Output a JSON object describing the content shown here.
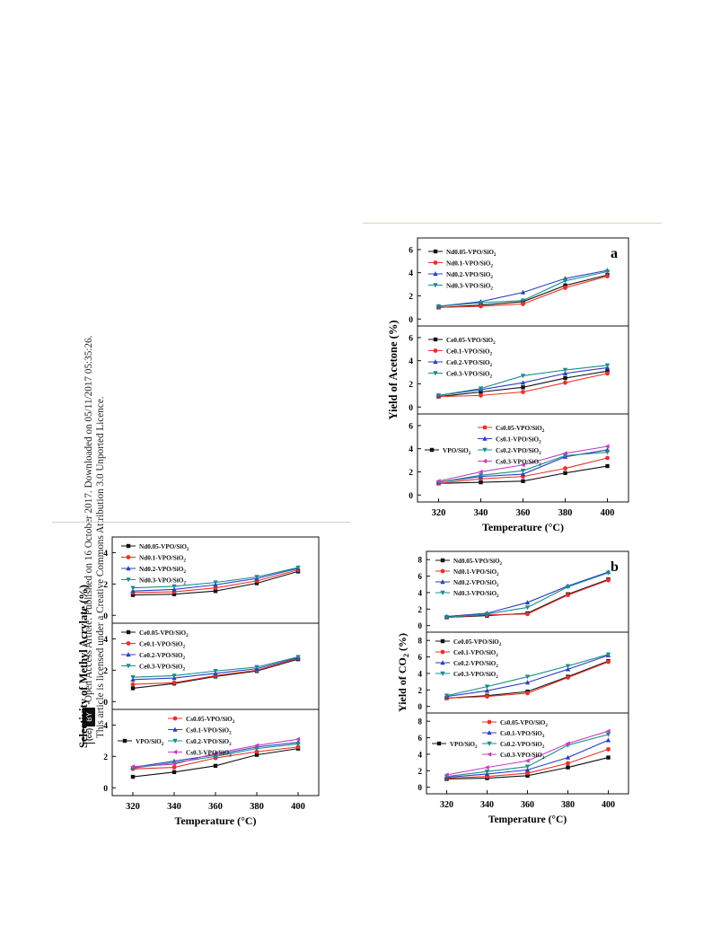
{
  "sidebar": {
    "line1": "Open Access Article. Published on 16 October 2017. Downloaded on 05/11/2017 05:35:26.",
    "line2": "This article is licensed under a Creative Commons Attribution 3.0 Unported Licence.",
    "badge_cc": "(cc)",
    "badge_by": "BY"
  },
  "colors": {
    "black": "#111111",
    "red": "#e8322b",
    "blue": "#2b3fbf",
    "teal": "#1a8c8c",
    "magenta": "#c040c0"
  },
  "chart_data": [
    {
      "id": "acetone",
      "type": "line",
      "panel_letter": "a",
      "ylabel": "Yield of  Acetone (%)",
      "xlabel": "Temperature (°C)",
      "x": [
        320,
        340,
        360,
        380,
        400
      ],
      "xlim": [
        310,
        410
      ],
      "subplots": [
        {
          "ylim": [
            -0.6,
            7
          ],
          "yticks": [
            "0",
            "2",
            "4",
            "6"
          ],
          "series": [
            {
              "name": "Nd0.05-VPO/SiO2",
              "color": "#111111",
              "marker": "square",
              "values": [
                1.0,
                1.2,
                1.5,
                2.9,
                3.8
              ]
            },
            {
              "name": "Nd0.1-VPO/SiO2",
              "color": "#e8322b",
              "marker": "circle",
              "values": [
                1.0,
                1.1,
                1.3,
                2.7,
                3.7
              ]
            },
            {
              "name": "Nd0.2-VPO/SiO2",
              "color": "#2b3fbf",
              "marker": "triangle-up",
              "values": [
                1.1,
                1.5,
                2.3,
                3.5,
                4.2
              ]
            },
            {
              "name": "Nd0.3-VPO/SiO2",
              "color": "#1a8c8c",
              "marker": "triangle-down",
              "values": [
                1.1,
                1.4,
                1.6,
                3.3,
                4.1
              ]
            }
          ]
        },
        {
          "ylim": [
            -0.6,
            7
          ],
          "yticks": [
            "0",
            "2",
            "4",
            "6"
          ],
          "series": [
            {
              "name": "Ce0.05-VPO/SiO2",
              "color": "#111111",
              "marker": "square",
              "values": [
                0.9,
                1.3,
                1.7,
                2.5,
                3.1
              ]
            },
            {
              "name": "Ce0.1-VPO/SiO2",
              "color": "#e8322b",
              "marker": "circle",
              "values": [
                0.9,
                1.0,
                1.3,
                2.1,
                2.9
              ]
            },
            {
              "name": "Ce0.2-VPO/SiO2",
              "color": "#2b3fbf",
              "marker": "triangle-up",
              "values": [
                1.0,
                1.5,
                2.1,
                2.9,
                3.4
              ]
            },
            {
              "name": "Ce0.3-VPO/SiO2",
              "color": "#1a8c8c",
              "marker": "triangle-down",
              "values": [
                1.0,
                1.6,
                2.7,
                3.2,
                3.6
              ]
            }
          ]
        },
        {
          "ylim": [
            -0.6,
            7
          ],
          "yticks": [
            "0",
            "2",
            "4",
            "6"
          ],
          "series": [
            {
              "name": "VPO/SiO2",
              "color": "#111111",
              "marker": "square",
              "values": [
                1.0,
                1.1,
                1.2,
                1.9,
                2.5
              ]
            },
            {
              "name": "Cs0.05-VPO/SiO2",
              "color": "#e8322b",
              "marker": "circle",
              "values": [
                1.0,
                1.4,
                1.6,
                2.3,
                3.2
              ]
            },
            {
              "name": "Cs0.1-VPO/SiO2",
              "color": "#2b3fbf",
              "marker": "triangle-up",
              "values": [
                1.1,
                1.6,
                1.8,
                3.3,
                3.9
              ]
            },
            {
              "name": "Cs0.2-VPO/SiO2",
              "color": "#1a8c8c",
              "marker": "triangle-down",
              "values": [
                1.1,
                1.7,
                2.1,
                3.4,
                3.7
              ]
            },
            {
              "name": "Cs0.3-VPO/SiO2",
              "color": "#c040c0",
              "marker": "triangle-left",
              "values": [
                1.2,
                2.0,
                2.6,
                3.6,
                4.2
              ]
            }
          ]
        }
      ]
    },
    {
      "id": "methyl-acrylate",
      "type": "line",
      "panel_letter": "",
      "ylabel": "Selectivity of Methyl Acrylate (%)",
      "xlabel": "Temperature (°C)",
      "x": [
        320,
        340,
        360,
        380,
        400
      ],
      "xlim": [
        310,
        410
      ],
      "subplots": [
        {
          "ylim": [
            -0.5,
            5
          ],
          "yticks": [
            "0",
            "2",
            "4"
          ],
          "series": [
            {
              "name": "Nd0.05-VPO/SiO2",
              "color": "#111111",
              "marker": "square",
              "values": [
                1.3,
                1.35,
                1.55,
                2.05,
                2.8
              ]
            },
            {
              "name": "Nd0.1-VPO/SiO2",
              "color": "#e8322b",
              "marker": "circle",
              "values": [
                1.45,
                1.5,
                1.75,
                2.2,
                2.9
              ]
            },
            {
              "name": "Nd0.2-VPO/SiO2",
              "color": "#2b3fbf",
              "marker": "triangle-up",
              "values": [
                1.55,
                1.65,
                1.95,
                2.35,
                3.0
              ]
            },
            {
              "name": "Nd0.3-VPO/SiO2",
              "color": "#1a8c8c",
              "marker": "triangle-down",
              "values": [
                1.75,
                1.85,
                2.1,
                2.45,
                3.05
              ]
            }
          ]
        },
        {
          "ylim": [
            -0.5,
            5
          ],
          "yticks": [
            "0",
            "2",
            "4"
          ],
          "series": [
            {
              "name": "Ce0.05-VPO/SiO2",
              "color": "#111111",
              "marker": "square",
              "values": [
                0.85,
                1.15,
                1.6,
                1.95,
                2.7
              ]
            },
            {
              "name": "Ce0.1-VPO/SiO2",
              "color": "#e8322b",
              "marker": "circle",
              "values": [
                1.1,
                1.2,
                1.65,
                2.0,
                2.75
              ]
            },
            {
              "name": "Ce0.2-VPO/SiO2",
              "color": "#2b3fbf",
              "marker": "triangle-up",
              "values": [
                1.4,
                1.5,
                1.8,
                2.1,
                2.8
              ]
            },
            {
              "name": "Ce0.3-VPO/SiO2",
              "color": "#1a8c8c",
              "marker": "triangle-down",
              "values": [
                1.55,
                1.65,
                1.95,
                2.2,
                2.85
              ]
            }
          ]
        },
        {
          "ylim": [
            -0.5,
            5
          ],
          "yticks": [
            "0",
            "2",
            "4"
          ],
          "series": [
            {
              "name": "VPO/SiO2",
              "color": "#111111",
              "marker": "square",
              "values": [
                0.7,
                1.0,
                1.4,
                2.1,
                2.5
              ]
            },
            {
              "name": "Cs0.05-VPO/SiO2",
              "color": "#e8322b",
              "marker": "circle",
              "values": [
                1.2,
                1.3,
                1.9,
                2.3,
                2.6
              ]
            },
            {
              "name": "Cs0.1-VPO/SiO2",
              "color": "#2b3fbf",
              "marker": "triangle-up",
              "values": [
                1.3,
                1.7,
                2.1,
                2.6,
                2.9
              ]
            },
            {
              "name": "Cs0.2-VPO/SiO2",
              "color": "#1a8c8c",
              "marker": "triangle-down",
              "values": [
                1.25,
                1.6,
                2.0,
                2.5,
                2.8
              ]
            },
            {
              "name": "Cs0.3-VPO/SiO2",
              "color": "#c040c0",
              "marker": "triangle-left",
              "values": [
                1.35,
                1.5,
                2.2,
                2.7,
                3.1
              ]
            }
          ]
        }
      ]
    },
    {
      "id": "co2",
      "type": "line",
      "panel_letter": "b",
      "ylabel": "Yield of  CO2 (%)",
      "xlabel": "Temperature (°C)",
      "x": [
        320,
        340,
        360,
        380,
        400
      ],
      "xlim": [
        310,
        410
      ],
      "subplots": [
        {
          "ylim": [
            -0.8,
            9
          ],
          "yticks": [
            "0",
            "2",
            "4",
            "6",
            "8"
          ],
          "series": [
            {
              "name": "Nd0.05-VPO/SiO2",
              "color": "#111111",
              "marker": "square",
              "values": [
                1.0,
                1.2,
                1.5,
                3.8,
                5.6
              ]
            },
            {
              "name": "Nd0.1-VPO/SiO2",
              "color": "#e8322b",
              "marker": "circle",
              "values": [
                1.0,
                1.3,
                1.4,
                3.7,
                5.5
              ]
            },
            {
              "name": "Nd0.2-VPO/SiO2",
              "color": "#2b3fbf",
              "marker": "triangle-up",
              "values": [
                1.1,
                1.5,
                2.8,
                4.8,
                6.5
              ]
            },
            {
              "name": "Nd0.3-VPO/SiO2",
              "color": "#1a8c8c",
              "marker": "triangle-down",
              "values": [
                1.0,
                1.4,
                2.2,
                4.7,
                6.4
              ]
            }
          ]
        },
        {
          "ylim": [
            -0.8,
            9
          ],
          "yticks": [
            "0",
            "2",
            "4",
            "6",
            "8"
          ],
          "series": [
            {
              "name": "Ce0.05-VPO/SiO2",
              "color": "#111111",
              "marker": "square",
              "values": [
                1.0,
                1.3,
                1.8,
                3.6,
                5.5
              ]
            },
            {
              "name": "Ce0.1-VPO/SiO2",
              "color": "#e8322b",
              "marker": "circle",
              "values": [
                1.0,
                1.2,
                1.6,
                3.5,
                5.4
              ]
            },
            {
              "name": "Ce0.2-VPO/SiO2",
              "color": "#2b3fbf",
              "marker": "triangle-up",
              "values": [
                1.2,
                1.9,
                2.9,
                4.5,
                6.2
              ]
            },
            {
              "name": "Ce0.3-VPO/SiO2",
              "color": "#1a8c8c",
              "marker": "triangle-down",
              "values": [
                1.3,
                2.4,
                3.6,
                4.9,
                6.3
              ]
            }
          ]
        },
        {
          "ylim": [
            -0.8,
            9
          ],
          "yticks": [
            "0",
            "2",
            "4",
            "6",
            "8"
          ],
          "series": [
            {
              "name": "VPO/SiO2",
              "color": "#111111",
              "marker": "square",
              "values": [
                1.0,
                1.1,
                1.4,
                2.4,
                3.6
              ]
            },
            {
              "name": "Cs0.05-VPO/SiO2",
              "color": "#e8322b",
              "marker": "circle",
              "values": [
                1.1,
                1.3,
                1.7,
                2.9,
                4.6
              ]
            },
            {
              "name": "Cs0.1-VPO/SiO2",
              "color": "#2b3fbf",
              "marker": "triangle-up",
              "values": [
                1.2,
                1.6,
                2.1,
                3.6,
                5.7
              ]
            },
            {
              "name": "Cs0.2-VPO/SiO2",
              "color": "#1a8c8c",
              "marker": "triangle-down",
              "values": [
                1.3,
                1.9,
                2.5,
                5.1,
                6.4
              ]
            },
            {
              "name": "Cs0.3-VPO/SiO2",
              "color": "#c040c0",
              "marker": "triangle-left",
              "values": [
                1.5,
                2.4,
                3.2,
                5.3,
                6.8
              ]
            }
          ]
        }
      ]
    }
  ]
}
